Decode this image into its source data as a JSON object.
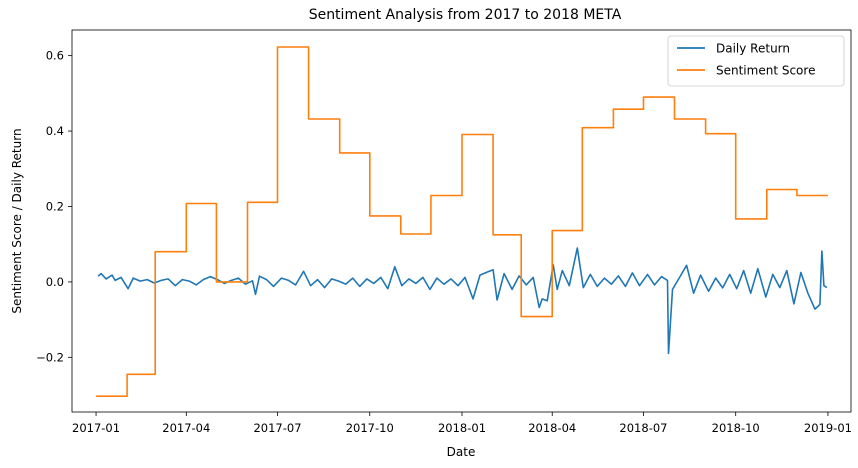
{
  "chart_data": {
    "type": "line",
    "title": "Sentiment Analysis from 2017 to 2018 META",
    "xlabel": "Date",
    "ylabel": "Sentiment Score / Daily Return",
    "xlim": [
      "2016-12-08",
      "2019-01-24"
    ],
    "ylim": [
      -0.345,
      0.668
    ],
    "x_ticks": [
      "2017-01",
      "2017-04",
      "2017-07",
      "2017-10",
      "2018-01",
      "2018-04",
      "2018-07",
      "2018-10",
      "2019-01"
    ],
    "y_ticks": [
      -0.2,
      0.0,
      0.2,
      0.4,
      0.6
    ],
    "y_tick_labels": [
      "−0.2",
      "0.0",
      "0.2",
      "0.4",
      "0.6"
    ],
    "legend_position": "top-right",
    "grid": false,
    "series": [
      {
        "name": "Daily Return",
        "color": "#1f77b4",
        "points": [
          [
            "2017-01-03",
            0.015
          ],
          [
            "2017-01-06",
            0.022
          ],
          [
            "2017-01-11",
            0.008
          ],
          [
            "2017-01-17",
            0.018
          ],
          [
            "2017-01-20",
            0.004
          ],
          [
            "2017-01-26",
            0.012
          ],
          [
            "2017-02-02",
            -0.018
          ],
          [
            "2017-02-07",
            0.01
          ],
          [
            "2017-02-14",
            0.002
          ],
          [
            "2017-02-21",
            0.006
          ],
          [
            "2017-02-28",
            -0.003
          ],
          [
            "2017-03-07",
            0.004
          ],
          [
            "2017-03-14",
            0.008
          ],
          [
            "2017-03-21",
            -0.01
          ],
          [
            "2017-03-28",
            0.006
          ],
          [
            "2017-04-04",
            0.002
          ],
          [
            "2017-04-11",
            -0.008
          ],
          [
            "2017-04-18",
            0.006
          ],
          [
            "2017-04-25",
            0.014
          ],
          [
            "2017-05-02",
            0.006
          ],
          [
            "2017-05-09",
            -0.004
          ],
          [
            "2017-05-16",
            0.004
          ],
          [
            "2017-05-23",
            0.01
          ],
          [
            "2017-05-30",
            -0.006
          ],
          [
            "2017-06-06",
            0.003
          ],
          [
            "2017-06-09",
            -0.033
          ],
          [
            "2017-06-13",
            0.015
          ],
          [
            "2017-06-20",
            0.006
          ],
          [
            "2017-06-27",
            -0.012
          ],
          [
            "2017-07-05",
            0.01
          ],
          [
            "2017-07-12",
            0.004
          ],
          [
            "2017-07-19",
            -0.008
          ],
          [
            "2017-07-27",
            0.028
          ],
          [
            "2017-08-03",
            -0.01
          ],
          [
            "2017-08-10",
            0.006
          ],
          [
            "2017-08-17",
            -0.015
          ],
          [
            "2017-08-24",
            0.008
          ],
          [
            "2017-08-31",
            0.002
          ],
          [
            "2017-09-07",
            -0.006
          ],
          [
            "2017-09-14",
            0.01
          ],
          [
            "2017-09-21",
            -0.012
          ],
          [
            "2017-09-28",
            0.008
          ],
          [
            "2017-10-05",
            -0.004
          ],
          [
            "2017-10-12",
            0.012
          ],
          [
            "2017-10-19",
            -0.018
          ],
          [
            "2017-10-26",
            0.04
          ],
          [
            "2017-11-02",
            -0.01
          ],
          [
            "2017-11-09",
            0.008
          ],
          [
            "2017-11-16",
            -0.004
          ],
          [
            "2017-11-23",
            0.012
          ],
          [
            "2017-11-30",
            -0.02
          ],
          [
            "2017-12-07",
            0.01
          ],
          [
            "2017-12-14",
            -0.006
          ],
          [
            "2017-12-21",
            0.008
          ],
          [
            "2017-12-28",
            -0.01
          ],
          [
            "2018-01-04",
            0.012
          ],
          [
            "2018-01-12",
            -0.045
          ],
          [
            "2018-01-19",
            0.018
          ],
          [
            "2018-01-26",
            0.026
          ],
          [
            "2018-02-01",
            0.032
          ],
          [
            "2018-02-05",
            -0.048
          ],
          [
            "2018-02-12",
            0.022
          ],
          [
            "2018-02-20",
            -0.02
          ],
          [
            "2018-02-27",
            0.016
          ],
          [
            "2018-03-06",
            -0.008
          ],
          [
            "2018-03-13",
            0.012
          ],
          [
            "2018-03-19",
            -0.068
          ],
          [
            "2018-03-22",
            -0.045
          ],
          [
            "2018-03-27",
            -0.05
          ],
          [
            "2018-04-02",
            0.045
          ],
          [
            "2018-04-06",
            -0.02
          ],
          [
            "2018-04-11",
            0.03
          ],
          [
            "2018-04-18",
            -0.01
          ],
          [
            "2018-04-26",
            0.09
          ],
          [
            "2018-05-02",
            -0.015
          ],
          [
            "2018-05-09",
            0.02
          ],
          [
            "2018-05-16",
            -0.012
          ],
          [
            "2018-05-23",
            0.01
          ],
          [
            "2018-05-30",
            -0.006
          ],
          [
            "2018-06-06",
            0.016
          ],
          [
            "2018-06-13",
            -0.012
          ],
          [
            "2018-06-20",
            0.024
          ],
          [
            "2018-06-27",
            -0.01
          ],
          [
            "2018-07-05",
            0.02
          ],
          [
            "2018-07-12",
            -0.008
          ],
          [
            "2018-07-19",
            0.014
          ],
          [
            "2018-07-25",
            0.004
          ],
          [
            "2018-07-26",
            -0.19
          ],
          [
            "2018-07-30",
            -0.02
          ],
          [
            "2018-08-06",
            0.012
          ],
          [
            "2018-08-13",
            0.044
          ],
          [
            "2018-08-20",
            -0.03
          ],
          [
            "2018-08-27",
            0.018
          ],
          [
            "2018-09-04",
            -0.025
          ],
          [
            "2018-09-11",
            0.01
          ],
          [
            "2018-09-18",
            -0.016
          ],
          [
            "2018-09-25",
            0.02
          ],
          [
            "2018-10-02",
            -0.018
          ],
          [
            "2018-10-09",
            0.03
          ],
          [
            "2018-10-16",
            -0.03
          ],
          [
            "2018-10-23",
            0.035
          ],
          [
            "2018-10-31",
            -0.04
          ],
          [
            "2018-11-07",
            0.02
          ],
          [
            "2018-11-14",
            -0.015
          ],
          [
            "2018-11-21",
            0.03
          ],
          [
            "2018-11-28",
            -0.058
          ],
          [
            "2018-12-05",
            0.025
          ],
          [
            "2018-12-12",
            -0.03
          ],
          [
            "2018-12-19",
            -0.072
          ],
          [
            "2018-12-24",
            -0.06
          ],
          [
            "2018-12-26",
            0.082
          ],
          [
            "2018-12-28",
            -0.01
          ],
          [
            "2018-12-31",
            -0.015
          ]
        ]
      },
      {
        "name": "Sentiment Score",
        "color": "#ff7f0e",
        "steps": [
          [
            "2017-01-01",
            -0.303
          ],
          [
            "2017-02-01",
            -0.245
          ],
          [
            "2017-03-01",
            0.08
          ],
          [
            "2017-04-01",
            0.208
          ],
          [
            "2017-05-01",
            0.0
          ],
          [
            "2017-06-01",
            0.211
          ],
          [
            "2017-07-01",
            0.623
          ],
          [
            "2017-08-01",
            0.432
          ],
          [
            "2017-09-01",
            0.342
          ],
          [
            "2017-10-01",
            0.175
          ],
          [
            "2017-11-01",
            0.127
          ],
          [
            "2017-12-01",
            0.229
          ],
          [
            "2018-01-01",
            0.391
          ],
          [
            "2018-02-01",
            0.125
          ],
          [
            "2018-03-01",
            -0.092
          ],
          [
            "2018-04-01",
            0.136
          ],
          [
            "2018-05-01",
            0.409
          ],
          [
            "2018-06-01",
            0.458
          ],
          [
            "2018-07-01",
            0.49
          ],
          [
            "2018-08-01",
            0.432
          ],
          [
            "2018-09-01",
            0.393
          ],
          [
            "2018-10-01",
            0.167
          ],
          [
            "2018-11-01",
            0.245
          ],
          [
            "2018-12-01",
            0.229
          ]
        ],
        "end": "2019-01-01"
      }
    ]
  }
}
